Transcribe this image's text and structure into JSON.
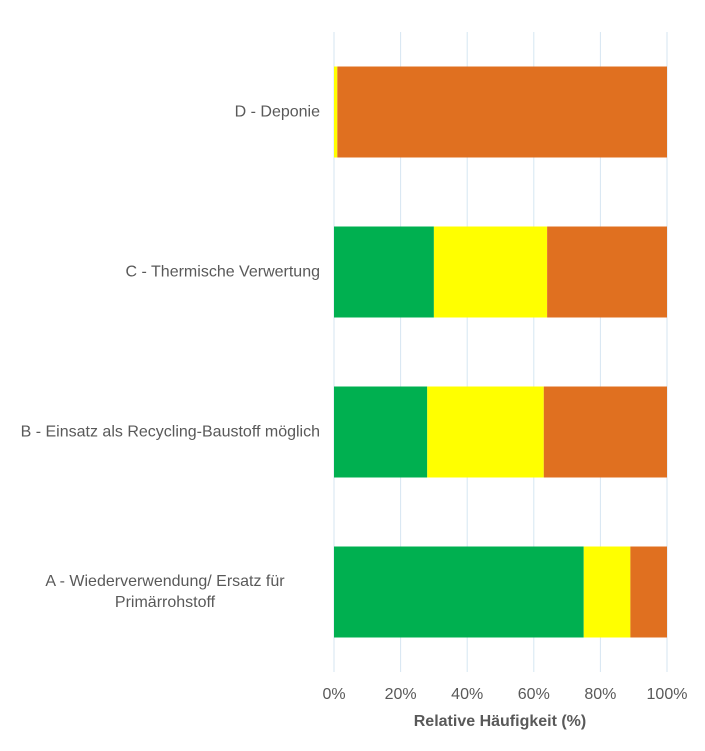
{
  "chart_data": {
    "type": "stacked_bar_horizontal",
    "categories": [
      "D - Deponie",
      "C - Thermische Verwertung",
      "B - Einsatz als Recycling-Baustoff möglich",
      "A - Wiederverwendung/ Ersatz für Primärrohstoff"
    ],
    "series": [
      {
        "color": "#00b050",
        "values": [
          0,
          30,
          28,
          75
        ]
      },
      {
        "color": "#ffff00",
        "values": [
          1,
          34,
          35,
          14
        ]
      },
      {
        "color": "#e07020",
        "values": [
          99,
          36,
          37,
          11
        ]
      }
    ],
    "xlabel": "Relative Häufigkeit (%)",
    "xlim": [
      0,
      100
    ],
    "xticks": [
      {
        "value": 0,
        "label": "0%"
      },
      {
        "value": 20,
        "label": "20%"
      },
      {
        "value": 40,
        "label": "40%"
      },
      {
        "value": 60,
        "label": "60%"
      },
      {
        "value": 80,
        "label": "80%"
      },
      {
        "value": 100,
        "label": "100%"
      }
    ],
    "grid": true
  }
}
